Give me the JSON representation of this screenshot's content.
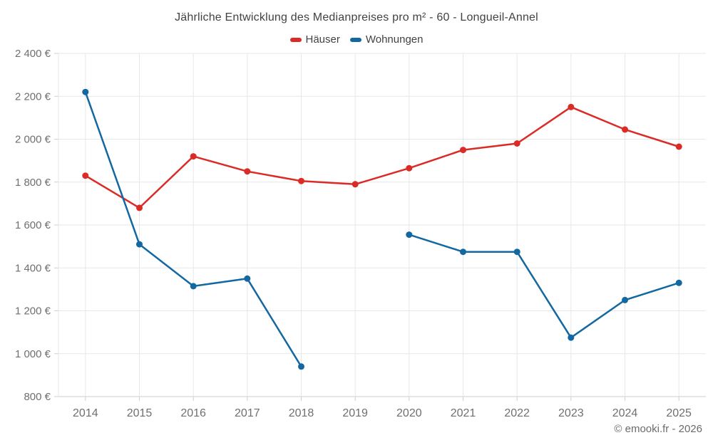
{
  "header": {
    "title": "Jährliche Entwicklung des Medianpreises pro m² - 60 - Longueil-Annel"
  },
  "legend": {
    "items": [
      {
        "label": "Häuser",
        "color": "#db2b27"
      },
      {
        "label": "Wohnungen",
        "color": "#1368a2"
      }
    ]
  },
  "footer": {
    "credit": "© emooki.fr - 2026"
  },
  "chart_data": {
    "type": "line",
    "title": "Jährliche Entwicklung des Medianpreises pro m² - 60 - Longueil-Annel",
    "categories": [
      "2014",
      "2015",
      "2016",
      "2017",
      "2018",
      "2019",
      "2020",
      "2021",
      "2022",
      "2023",
      "2024",
      "2025"
    ],
    "series": [
      {
        "name": "Häuser",
        "color": "#db2b27",
        "values": [
          1830,
          1680,
          1920,
          1850,
          1805,
          1790,
          1865,
          1950,
          1980,
          2150,
          2045,
          1965
        ]
      },
      {
        "name": "Wohnungen",
        "color": "#1368a2",
        "values": [
          2220,
          1510,
          1315,
          1350,
          940,
          null,
          1555,
          1475,
          1475,
          1075,
          1250,
          1330
        ]
      }
    ],
    "xlabel": "",
    "ylabel": "",
    "ylim": [
      800,
      2400
    ],
    "y_tick_values": [
      2400,
      2200,
      2000,
      1800,
      1600,
      1400,
      1200,
      1000,
      800
    ],
    "y_tick_labels": [
      "2 400 €",
      "2 200 €",
      "2 000 €",
      "1 800 €",
      "1 600 €",
      "1 400 €",
      "1 200 €",
      "1 000 €",
      "800 €"
    ],
    "grid": true,
    "legend_position": "top",
    "styles": {
      "grid_color": "#e7e7e7",
      "axis_color": "#cccccc",
      "tick_color": "#cfcfcf",
      "label_color": "#6f6f6f"
    }
  }
}
